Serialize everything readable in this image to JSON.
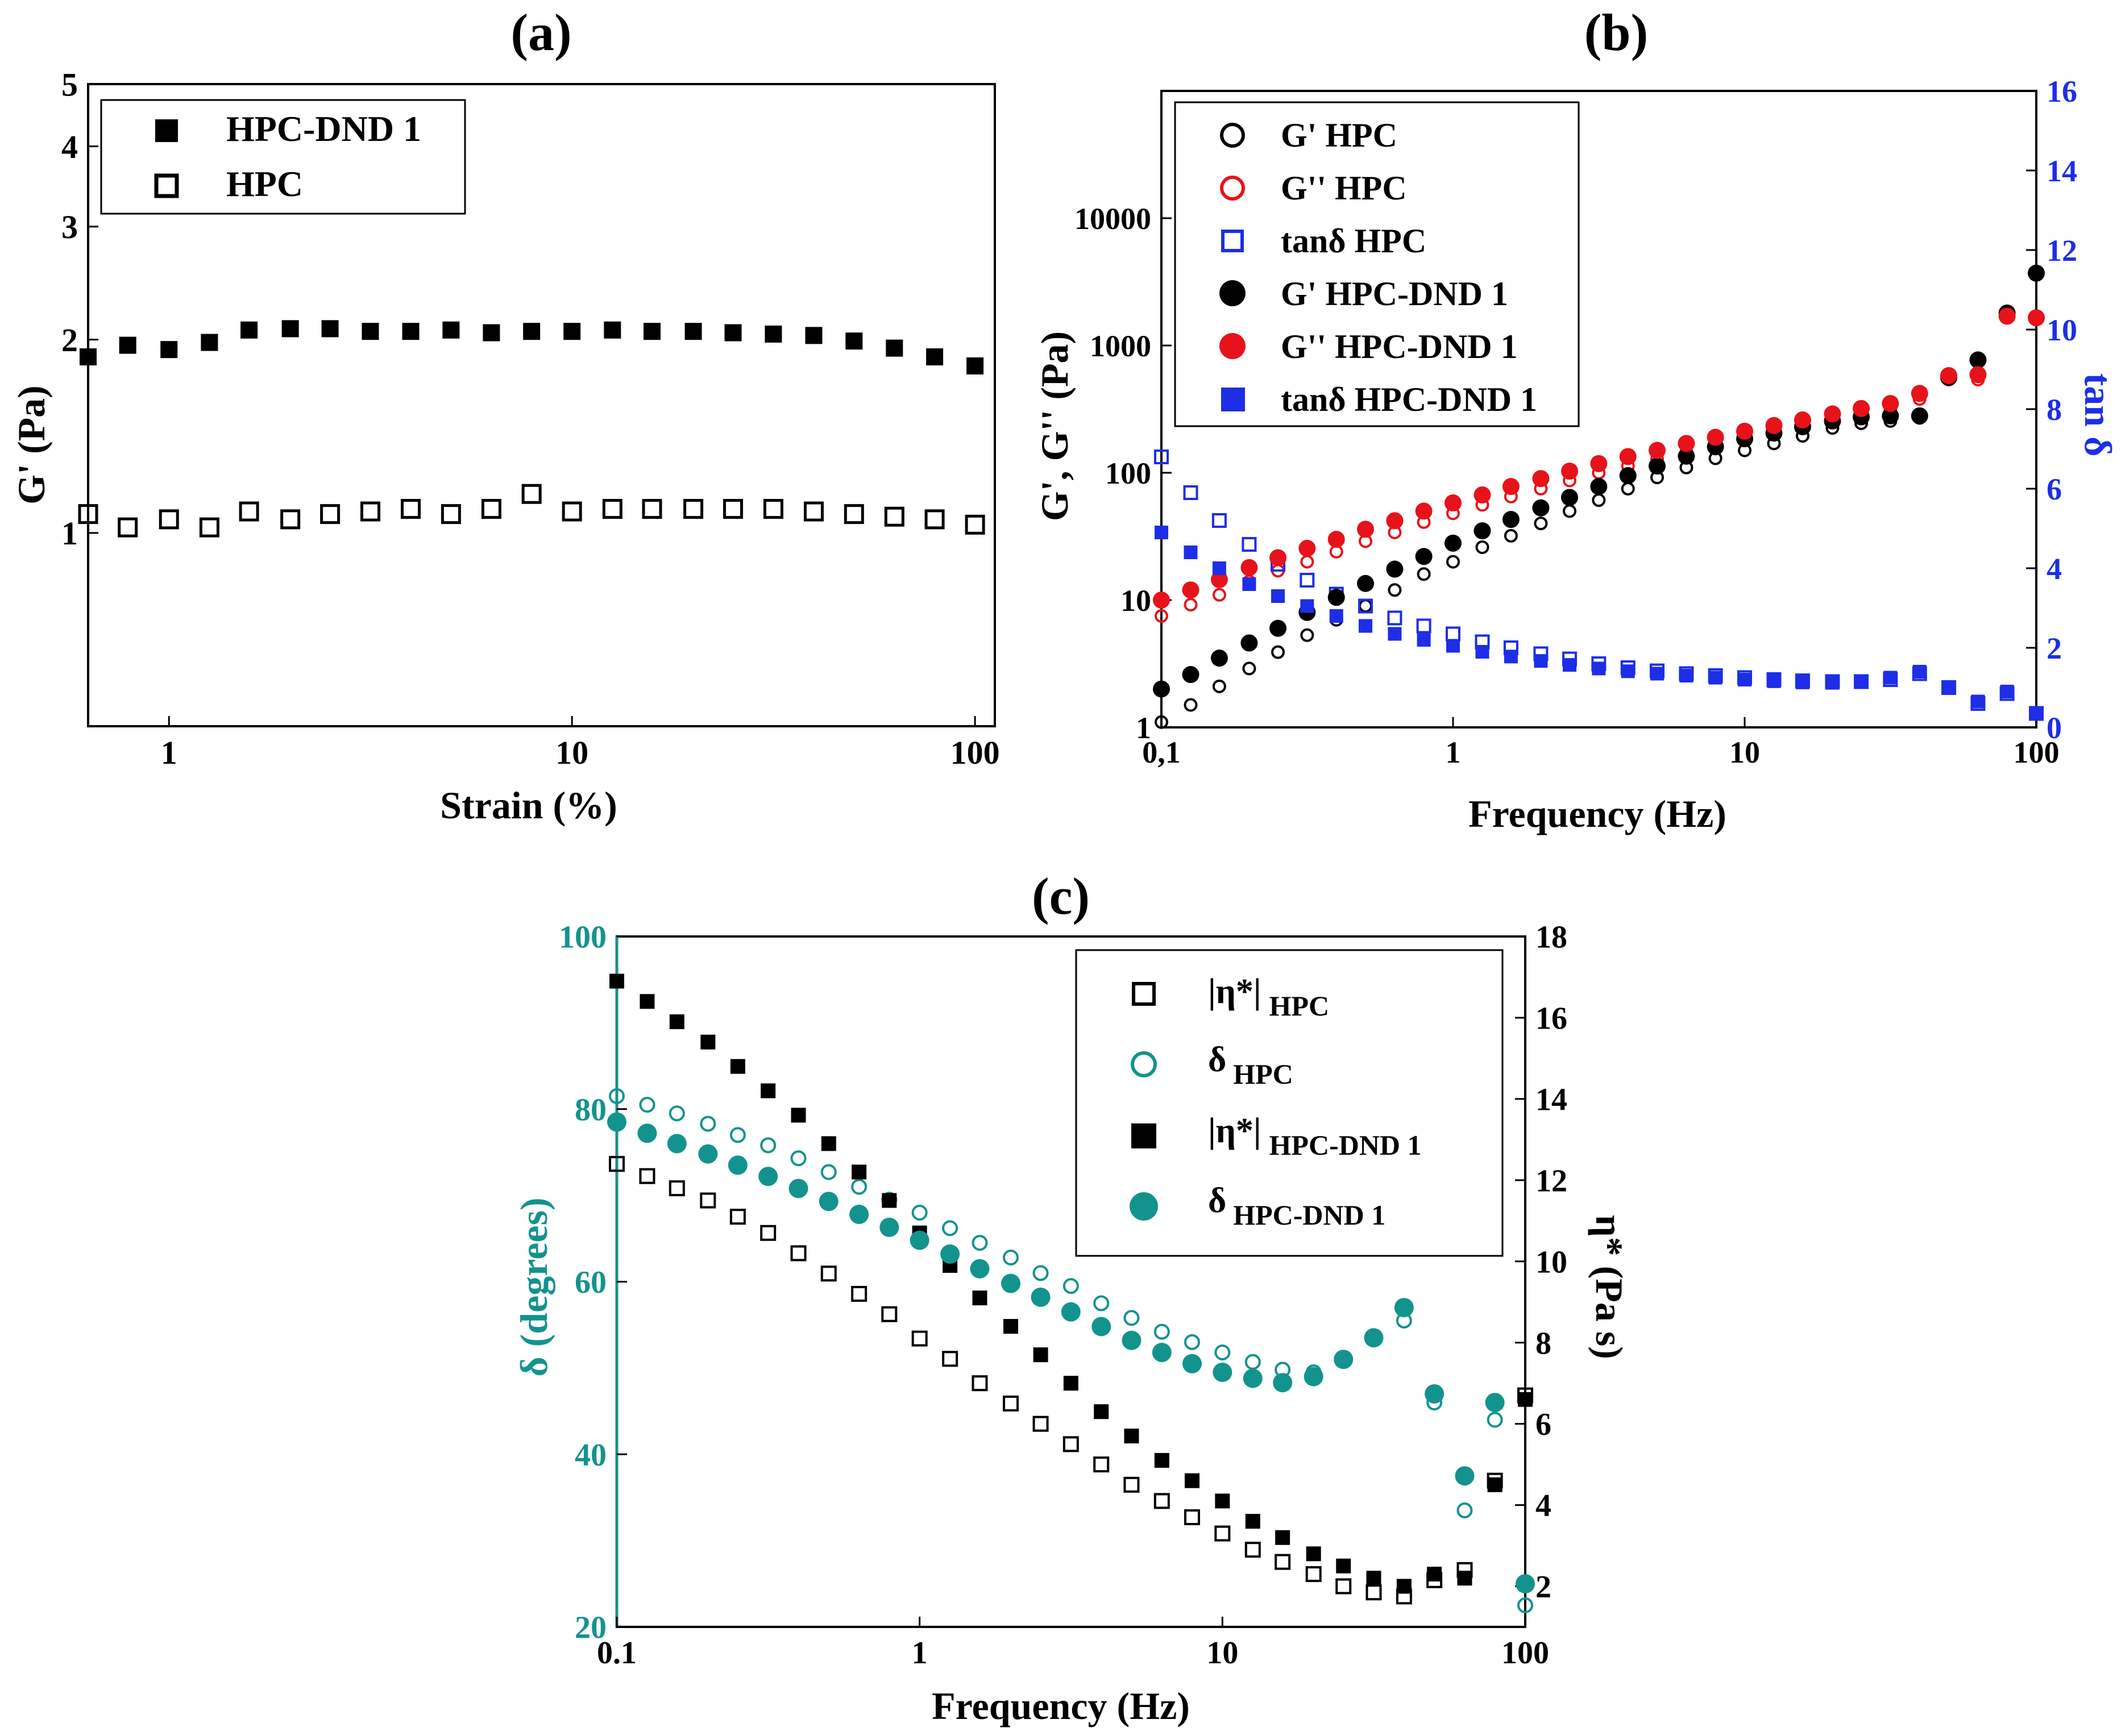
{
  "figure": {
    "colors": {
      "black": "#000000",
      "red": "#e8121a",
      "blue": "#1d2ee6",
      "teal": "#13938e"
    }
  },
  "chart_data": [
    {
      "id": "a",
      "panel_label": "(a)",
      "type": "scatter",
      "xlabel": "Strain (%)",
      "ylabel": "G' (Pa)",
      "x_scale": "log",
      "y_scale": "log",
      "xlim": [
        0.63,
        112
      ],
      "ylim": [
        0.5,
        5
      ],
      "xticks": [
        {
          "v": 1,
          "label": "1"
        },
        {
          "v": 10,
          "label": "10"
        },
        {
          "v": 100,
          "label": "100"
        }
      ],
      "yticks": [
        {
          "v": 1,
          "label": "1"
        },
        {
          "v": 2,
          "label": "2"
        },
        {
          "v": 3,
          "label": "3"
        },
        {
          "v": 4,
          "label": "4"
        },
        {
          "v": 5,
          "label": "5"
        }
      ],
      "legend_position": "top-left",
      "x": [
        0.63,
        0.79,
        1.0,
        1.26,
        1.58,
        2.0,
        2.51,
        3.16,
        3.98,
        5.01,
        6.31,
        7.94,
        10.0,
        12.6,
        15.8,
        20.0,
        25.1,
        31.6,
        39.8,
        50.1,
        63.1,
        79.4,
        100
      ],
      "series": [
        {
          "name": "HPC-DND 1",
          "marker": "square-filled",
          "values": [
            1.88,
            1.96,
            1.93,
            1.98,
            2.07,
            2.08,
            2.08,
            2.06,
            2.06,
            2.07,
            2.05,
            2.06,
            2.06,
            2.07,
            2.06,
            2.06,
            2.05,
            2.04,
            2.03,
            1.99,
            1.94,
            1.88,
            1.82
          ]
        },
        {
          "name": "HPC",
          "marker": "square-open",
          "values": [
            1.07,
            1.02,
            1.05,
            1.02,
            1.08,
            1.05,
            1.07,
            1.08,
            1.09,
            1.07,
            1.09,
            1.15,
            1.08,
            1.09,
            1.09,
            1.09,
            1.09,
            1.09,
            1.08,
            1.07,
            1.06,
            1.05,
            1.03
          ]
        }
      ]
    },
    {
      "id": "b",
      "panel_label": "(b)",
      "type": "scatter",
      "xlabel": "Frequency (Hz)",
      "ylabel": "G', G'' (Pa)",
      "y2label": "tan δ",
      "x_scale": "log",
      "y_scale": "log",
      "xlim": [
        0.1,
        100
      ],
      "ylim": [
        1,
        100000
      ],
      "y2lim": [
        0,
        16
      ],
      "xticks": [
        {
          "v": 0.1,
          "label": "0,1"
        },
        {
          "v": 1,
          "label": "1"
        },
        {
          "v": 10,
          "label": "10"
        },
        {
          "v": 100,
          "label": "100"
        }
      ],
      "yticks": [
        {
          "v": 1,
          "label": "1"
        },
        {
          "v": 10,
          "label": "10"
        },
        {
          "v": 100,
          "label": "100"
        },
        {
          "v": 1000,
          "label": "1000"
        },
        {
          "v": 10000,
          "label": "10000"
        }
      ],
      "y2ticks": [
        {
          "v": 0,
          "label": "0"
        },
        {
          "v": 2,
          "label": "2"
        },
        {
          "v": 4,
          "label": "4"
        },
        {
          "v": 6,
          "label": "6"
        },
        {
          "v": 8,
          "label": "8"
        },
        {
          "v": 10,
          "label": "10"
        },
        {
          "v": 12,
          "label": "12"
        },
        {
          "v": 14,
          "label": "14"
        },
        {
          "v": 16,
          "label": "16"
        }
      ],
      "legend_position": "top-left",
      "x": [
        0.1,
        0.126,
        0.158,
        0.2,
        0.251,
        0.316,
        0.398,
        0.501,
        0.631,
        0.794,
        1.0,
        1.26,
        1.58,
        2.0,
        2.51,
        3.16,
        3.98,
        5.01,
        6.31,
        7.94,
        10.0,
        12.6,
        15.8,
        20.0,
        25.1,
        31.6,
        39.8,
        50.1,
        63.1,
        79.4,
        100
      ],
      "series": [
        {
          "name": "G' HPC",
          "marker": "circle-open",
          "color": "#000000",
          "axis": "left",
          "values": [
            1.1,
            1.5,
            2.1,
            2.9,
            3.9,
            5.3,
            7,
            9,
            12,
            16,
            20,
            26,
            32,
            40,
            50,
            61,
            75,
            92,
            110,
            130,
            150,
            170,
            195,
            225,
            245,
            255,
            270,
            560,
            770,
            1800,
            3700
          ]
        },
        {
          "name": "G'' HPC",
          "marker": "circle-open",
          "color": "#e8121a",
          "axis": "left",
          "values": [
            7.5,
            9.2,
            11,
            14,
            17,
            20,
            24,
            29,
            34,
            41,
            48,
            56,
            65,
            75,
            87,
            100,
            113,
            128,
            145,
            163,
            182,
            205,
            230,
            260,
            290,
            320,
            380,
            540,
            540,
            1650,
            1600
          ]
        },
        {
          "name": "tanδ HPC",
          "marker": "square-open",
          "color": "#1d2ee6",
          "axis": "right",
          "values": [
            6.8,
            5.9,
            5.2,
            4.6,
            4.1,
            3.7,
            3.35,
            3.05,
            2.75,
            2.55,
            2.35,
            2.15,
            2.0,
            1.85,
            1.72,
            1.6,
            1.5,
            1.42,
            1.35,
            1.3,
            1.25,
            1.2,
            1.17,
            1.15,
            1.15,
            1.2,
            1.35,
            1.0,
            0.6,
            0.85,
            0.35
          ]
        },
        {
          "name": "G' HPC-DND 1",
          "marker": "circle-filled",
          "color": "#000000",
          "axis": "left",
          "values": [
            2,
            2.6,
            3.5,
            4.6,
            6,
            8,
            10.5,
            13.5,
            17.5,
            22,
            28,
            35,
            43,
            53,
            64,
            78,
            95,
            113,
            135,
            160,
            185,
            205,
            230,
            255,
            275,
            280,
            280,
            560,
            770,
            1800,
            3700
          ]
        },
        {
          "name": "G'' HPC-DND 1",
          "marker": "circle-filled",
          "color": "#e8121a",
          "axis": "left",
          "values": [
            10,
            12,
            14.5,
            18,
            21.5,
            25.5,
            30,
            36,
            42,
            50,
            58,
            67,
            78,
            90,
            103,
            118,
            134,
            150,
            170,
            190,
            212,
            235,
            260,
            290,
            320,
            350,
            420,
            580,
            590,
            1700,
            1650
          ]
        },
        {
          "name": "tanδ HPC-DND 1",
          "marker": "square-filled",
          "color": "#1d2ee6",
          "axis": "right",
          "values": [
            4.9,
            4.4,
            4.0,
            3.6,
            3.3,
            3.05,
            2.8,
            2.55,
            2.35,
            2.2,
            2.05,
            1.9,
            1.78,
            1.67,
            1.57,
            1.48,
            1.41,
            1.35,
            1.3,
            1.25,
            1.2,
            1.16,
            1.13,
            1.12,
            1.15,
            1.25,
            1.4,
            1.0,
            0.65,
            0.9,
            0.35
          ]
        }
      ]
    },
    {
      "id": "c",
      "panel_label": "(c)",
      "type": "scatter",
      "xlabel": "Frequency (Hz)",
      "ylabel": "δ (degrees)",
      "y2label": "η* (Pa s)",
      "x_scale": "log",
      "y_scale": "linear",
      "xlim": [
        0.1,
        100
      ],
      "ylim": [
        20,
        100
      ],
      "y2lim": [
        1,
        18
      ],
      "xticks": [
        {
          "v": 0.1,
          "label": "0.1"
        },
        {
          "v": 1,
          "label": "1"
        },
        {
          "v": 10,
          "label": "10"
        },
        {
          "v": 100,
          "label": "100"
        }
      ],
      "yticks": [
        {
          "v": 20,
          "label": "20"
        },
        {
          "v": 40,
          "label": "40"
        },
        {
          "v": 60,
          "label": "60"
        },
        {
          "v": 80,
          "label": "80"
        },
        {
          "v": 100,
          "label": "100"
        }
      ],
      "y2ticks": [
        {
          "v": 2,
          "label": "2"
        },
        {
          "v": 4,
          "label": "4"
        },
        {
          "v": 6,
          "label": "6"
        },
        {
          "v": 8,
          "label": "8"
        },
        {
          "v": 10,
          "label": "10"
        },
        {
          "v": 12,
          "label": "12"
        },
        {
          "v": 14,
          "label": "14"
        },
        {
          "v": 16,
          "label": "16"
        },
        {
          "v": 18,
          "label": "18"
        }
      ],
      "legend_position": "top-right",
      "x": [
        0.1,
        0.126,
        0.158,
        0.2,
        0.251,
        0.316,
        0.398,
        0.501,
        0.631,
        0.794,
        1.0,
        1.26,
        1.58,
        2.0,
        2.51,
        3.16,
        3.98,
        5.01,
        6.31,
        7.94,
        10.0,
        12.6,
        15.8,
        20.0,
        25.1,
        31.6,
        39.8,
        50.1,
        63.1,
        79.4,
        100
      ],
      "series": [
        {
          "name": "|η*| HPC",
          "legend_main": "|η*|",
          "legend_sub": "HPC",
          "marker": "square-open",
          "color": "#000000",
          "axis": "right",
          "values": [
            12.4,
            12.1,
            11.8,
            11.5,
            11.1,
            10.7,
            10.2,
            9.7,
            9.2,
            8.7,
            8.1,
            7.6,
            7.0,
            6.5,
            6.0,
            5.5,
            5.0,
            4.5,
            4.1,
            3.7,
            3.3,
            2.9,
            2.6,
            2.3,
            2.0,
            1.85,
            1.75,
            2.15,
            2.4,
            4.6,
            6.7
          ]
        },
        {
          "name": "δ HPC",
          "legend_main": "δ",
          "legend_sub": "HPC",
          "marker": "circle-open",
          "color": "#13938e",
          "axis": "left",
          "values": [
            81.5,
            80.5,
            79.5,
            78.3,
            77.0,
            75.8,
            74.3,
            72.7,
            71.0,
            69.5,
            68.0,
            66.2,
            64.5,
            62.8,
            61.0,
            59.5,
            57.5,
            55.8,
            54.2,
            53.0,
            51.8,
            50.7,
            49.8,
            49.5,
            51.0,
            53.5,
            55.5,
            46.0,
            33.5,
            44.0,
            22.5
          ]
        },
        {
          "name": "|η*| HPC-DND 1",
          "legend_main": "|η*|",
          "legend_sub": "HPC-DND 1",
          "marker": "square-filled",
          "color": "#000000",
          "axis": "right",
          "values": [
            16.9,
            16.4,
            15.9,
            15.4,
            14.8,
            14.2,
            13.6,
            12.9,
            12.2,
            11.5,
            10.7,
            9.9,
            9.1,
            8.4,
            7.7,
            7.0,
            6.3,
            5.7,
            5.1,
            4.6,
            4.1,
            3.6,
            3.2,
            2.8,
            2.5,
            2.2,
            2.0,
            2.3,
            2.2,
            4.5,
            6.6
          ]
        },
        {
          "name": "δ HPC-DND 1",
          "legend_main": "δ",
          "legend_sub": "HPC-DND 1",
          "marker": "circle-filled",
          "color": "#13938e",
          "axis": "left",
          "values": [
            78.5,
            77.2,
            76.0,
            74.8,
            73.5,
            72.2,
            70.8,
            69.3,
            67.8,
            66.3,
            64.8,
            63.2,
            61.5,
            59.8,
            58.2,
            56.5,
            54.8,
            53.2,
            51.8,
            50.5,
            49.5,
            48.8,
            48.3,
            49.0,
            51.0,
            53.5,
            57.0,
            47.0,
            37.5,
            46.0,
            25.0
          ]
        }
      ]
    }
  ]
}
